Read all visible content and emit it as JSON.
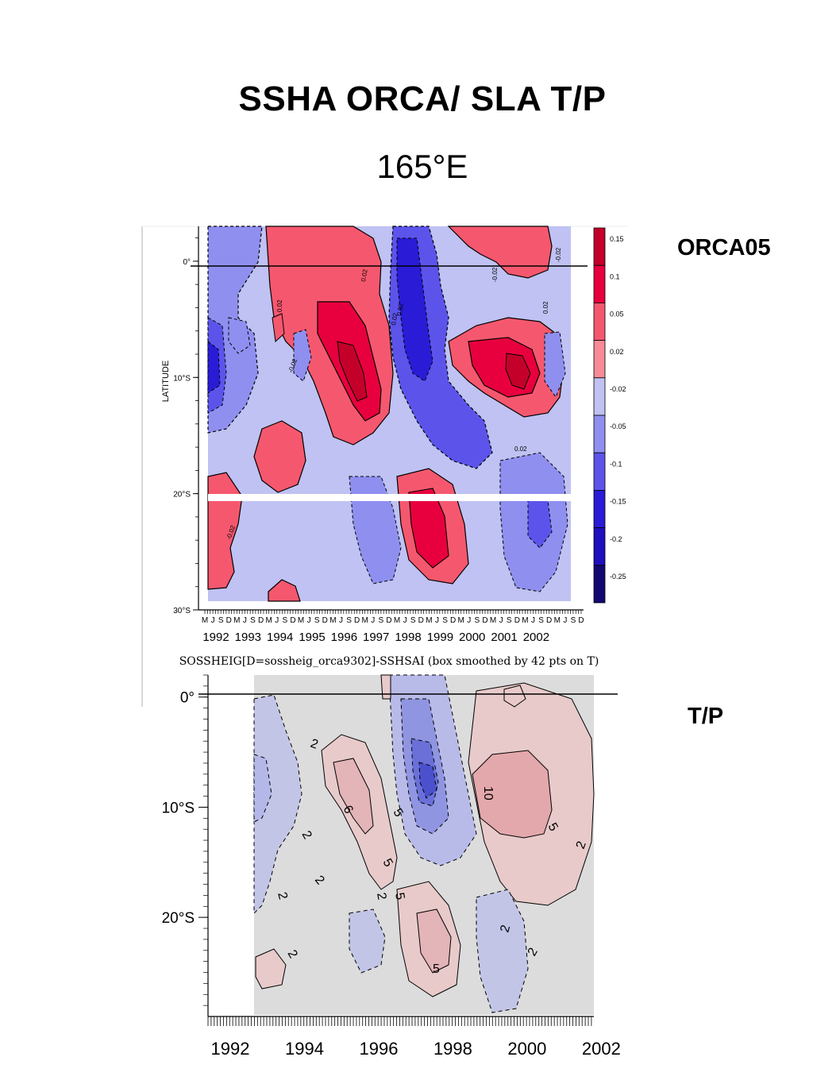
{
  "slide": {
    "title": "SSHA ORCA/ SLA T/P",
    "subtitle": "165°E"
  },
  "colors": {
    "strong_pos": "#e8003e",
    "pos": "#f5586e",
    "weak_pos": "#f78b98",
    "neutral": "#bfc2f2",
    "weak_neg": "#8f8ff0",
    "neg": "#5c54ea",
    "strong_neg": "#2a1bd6",
    "tp_pos": "#eab3b6",
    "tp_neutral": "#dcdcdc",
    "tp_neg": "#9ea3e2"
  },
  "chart_data": [
    {
      "type": "heatmap",
      "label": "ORCA05",
      "xlabel": "",
      "ylabel": "LATITUDE",
      "caption": "SOSSHEIG[D=sossheig_orca9302]-SSHSAI (box smoothed by 42 pts on T)",
      "x_ticks": [
        "1992",
        "1993",
        "1994",
        "1995",
        "1996",
        "1997",
        "1998",
        "1999",
        "2000",
        "2001",
        "2002"
      ],
      "month_ticks": [
        "M",
        "J",
        "S",
        "D",
        "M",
        "J",
        "S",
        "D",
        "M",
        "J",
        "S",
        "D",
        "M",
        "J",
        "S",
        "D",
        "M",
        "J",
        "S",
        "D",
        "M",
        "J",
        "S",
        "D",
        "M",
        "J",
        "S",
        "D",
        "M",
        "J",
        "S",
        "D",
        "M",
        "J",
        "S",
        "D",
        "M",
        "J",
        "S",
        "D",
        "M",
        "J",
        "S",
        "D",
        "M",
        "J",
        "S",
        "D"
      ],
      "y_ticks": [
        "0°",
        "10°S",
        "20°S",
        "30°S"
      ],
      "xlim": [
        1992.2,
        2002.9
      ],
      "ylim": [
        -30,
        3
      ],
      "colorbar_levels": [
        "0.15",
        "0.1",
        "0.05",
        "0.02",
        "-0.02",
        "-0.05",
        "-0.1",
        "-0.15",
        "-0.2",
        "-0.25"
      ],
      "contour_labels": [
        "0.02",
        "0.02",
        "0.02",
        "0.02",
        "-0.02",
        "-0.02",
        "-0.02",
        "-0.02",
        "0.02",
        "0.02"
      ]
    },
    {
      "type": "heatmap",
      "label": "T/P",
      "xlabel": "",
      "ylabel": "",
      "x_ticks": [
        "1992",
        "1994",
        "1996",
        "1998",
        "2000",
        "2002"
      ],
      "y_ticks": [
        "0°",
        "10°S",
        "20°S"
      ],
      "xlim": [
        1991.9,
        2002.3
      ],
      "ylim": [
        -29,
        2
      ],
      "contour_labels": [
        "2",
        "2",
        "2",
        "2",
        "2",
        "2",
        "6",
        "5",
        "5",
        "5",
        "2",
        "5",
        "10",
        "5",
        "2",
        "2"
      ]
    }
  ]
}
